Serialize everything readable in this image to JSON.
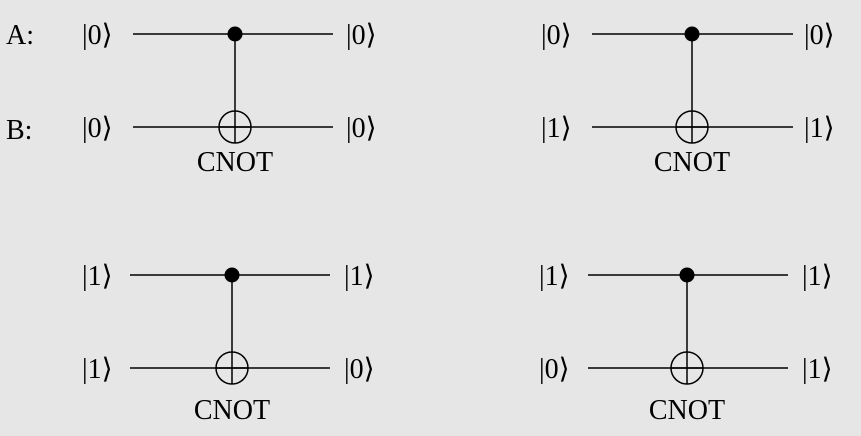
{
  "row_labels": {
    "a": "A:",
    "b": "B:"
  },
  "circuits": [
    {
      "gate": "CNOT",
      "a_in": "|0⟩",
      "b_in": "|0⟩",
      "a_out": "|0⟩",
      "b_out": "|0⟩"
    },
    {
      "gate": "CNOT",
      "a_in": "|0⟩",
      "b_in": "|1⟩",
      "a_out": "|0⟩",
      "b_out": "|1⟩"
    },
    {
      "gate": "CNOT",
      "a_in": "|1⟩",
      "b_in": "|1⟩",
      "a_out": "|1⟩",
      "b_out": "|0⟩"
    },
    {
      "gate": "CNOT",
      "a_in": "|1⟩",
      "b_in": "|0⟩",
      "a_out": "|1⟩",
      "b_out": "|1⟩"
    }
  ],
  "colors": {
    "background": "#e6e6e6",
    "ink": "#000000"
  }
}
